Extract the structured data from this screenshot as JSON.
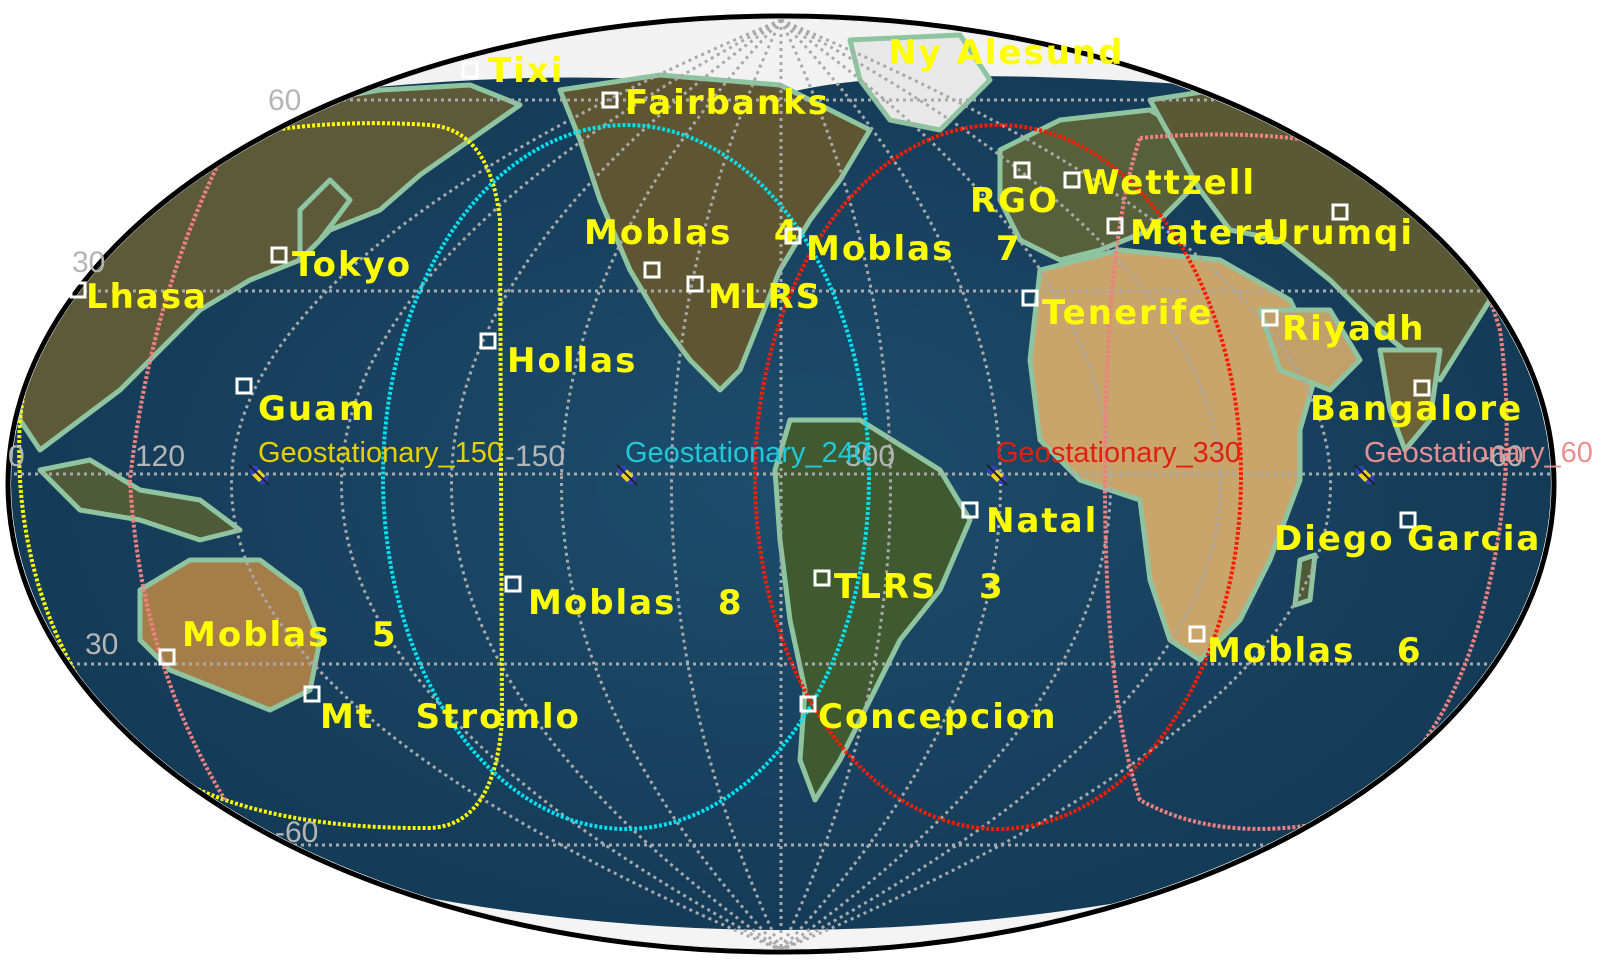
{
  "colors": {
    "ocean": "#153f5c",
    "land": "#5f5a34",
    "desert": "#c9a56b",
    "coast": "#8fc4a0",
    "grid": "#a9a9a9",
    "station_label": "#ffff00"
  },
  "grid_labels": {
    "lat_60": "60",
    "lat_30": "30",
    "lat_m30": "30",
    "lat_m60": "-60",
    "lon_120": "120",
    "lon_150": "-150",
    "lon_300": "300",
    "lon_0": "0",
    "lon_m60": "-60"
  },
  "satellites": [
    {
      "label": "Geostationary_150",
      "color": "#e8d000",
      "icon": "satellite-icon"
    },
    {
      "label": "Geostationary_240",
      "color": "#22c8d8",
      "icon": "satellite-icon"
    },
    {
      "label": "Geostationary_330",
      "color": "#e02010",
      "icon": "satellite-icon"
    },
    {
      "label": "Geostationary_60",
      "color": "#e89090",
      "icon": "satellite-icon"
    }
  ],
  "coverage_colors": [
    "#ffff00",
    "#00e0f0",
    "#ff1a00",
    "#f08080"
  ],
  "stations": [
    {
      "name": "Tixi"
    },
    {
      "name": "Fairbanks"
    },
    {
      "name": "Ny Alesund"
    },
    {
      "name": "Wettzell"
    },
    {
      "name": "RGO"
    },
    {
      "name": "Matera"
    },
    {
      "name": "Urumqi"
    },
    {
      "name": "Moblas   4"
    },
    {
      "name": "Moblas   7"
    },
    {
      "name": "Tokyo"
    },
    {
      "name": "Lhasa"
    },
    {
      "name": "MLRS"
    },
    {
      "name": "Tenerife"
    },
    {
      "name": "Riyadh"
    },
    {
      "name": "Hollas"
    },
    {
      "name": "Guam"
    },
    {
      "name": "Bangalore"
    },
    {
      "name": "Natal"
    },
    {
      "name": "Diego"
    },
    {
      "name": "Garcia"
    },
    {
      "name": "Moblas   8"
    },
    {
      "name": "TLRS   3"
    },
    {
      "name": "Moblas   5"
    },
    {
      "name": "Moblas   6"
    },
    {
      "name": "Mt   Stromlo"
    },
    {
      "name": "Concepcion"
    }
  ]
}
